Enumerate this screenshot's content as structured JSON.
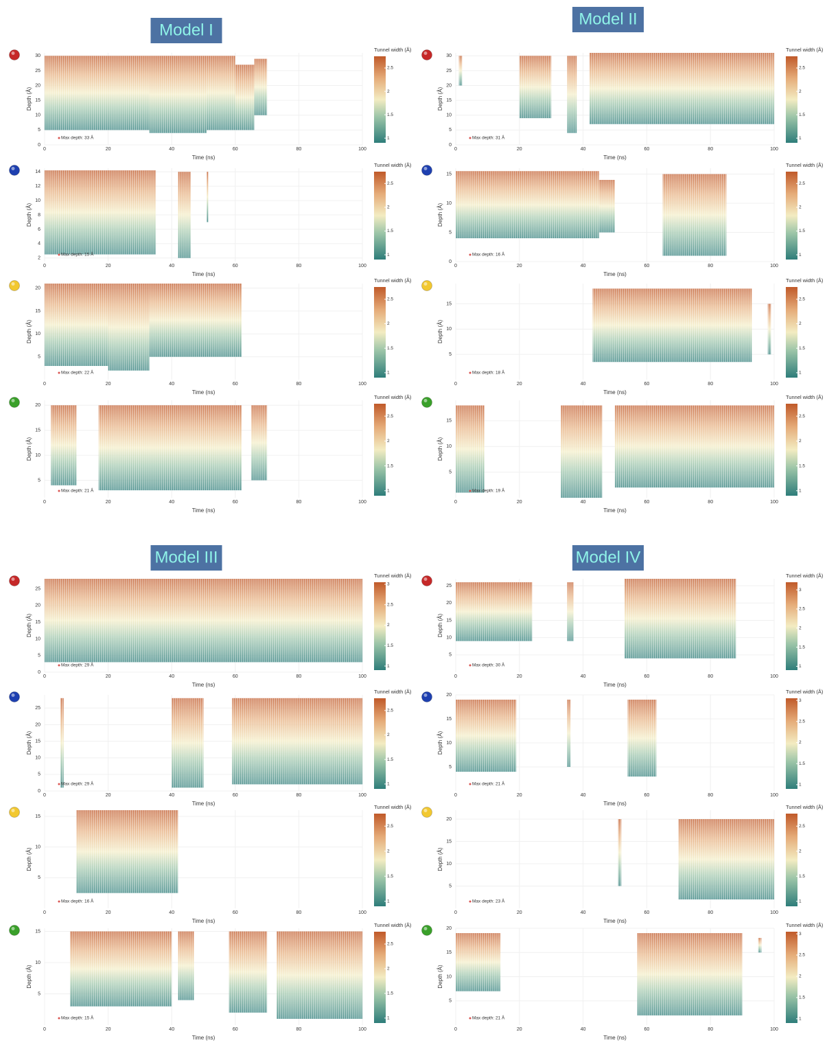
{
  "chart_data": [
    {
      "type": "heatmap",
      "title": "Model I",
      "marker_color": "#c62828",
      "xlabel": "Time (ns)",
      "ylabel": "Depth (Å)",
      "colorbar_label": "Tunnel width (Å)",
      "annotation": "Max depth: 33 Å",
      "xlim": [
        0,
        100
      ],
      "xticks": [
        0,
        20,
        40,
        60,
        80,
        100
      ],
      "ylim": [
        0,
        31
      ],
      "yticks": [
        0,
        5,
        10,
        15,
        20,
        25,
        30
      ],
      "clim": [
        0.9,
        2.75
      ],
      "cticks": [
        1,
        1.5,
        2,
        2.5
      ],
      "segments": [
        [
          0,
          33,
          5,
          30
        ],
        [
          33,
          45,
          4,
          30
        ],
        [
          45,
          51,
          4,
          30
        ],
        [
          51,
          60,
          5,
          30
        ],
        [
          60,
          66,
          5,
          27
        ],
        [
          66,
          70,
          10,
          29
        ]
      ]
    },
    {
      "type": "heatmap",
      "marker_color": "#1e40b0",
      "xlabel": "Time (ns)",
      "ylabel": "Depth (Å)",
      "colorbar_label": "Tunnel width (Å)",
      "annotation": "Max depth: 15 Å",
      "xlim": [
        0,
        100
      ],
      "xticks": [
        0,
        20,
        40,
        60,
        80,
        100
      ],
      "ylim": [
        1.5,
        14.5
      ],
      "yticks": [
        2,
        4,
        6,
        8,
        10,
        12,
        14
      ],
      "clim": [
        0.9,
        2.75
      ],
      "cticks": [
        1,
        1.5,
        2,
        2.5
      ],
      "segments": [
        [
          0,
          35,
          2.5,
          14.2
        ],
        [
          42,
          46,
          2,
          14
        ],
        [
          51,
          51.5,
          7,
          14
        ]
      ]
    },
    {
      "type": "heatmap",
      "marker_color": "#f2c830",
      "xlabel": "Time (ns)",
      "ylabel": "Depth (Å)",
      "colorbar_label": "Tunnel width (Å)",
      "annotation": "Max depth: 22 Å",
      "xlim": [
        0,
        100
      ],
      "xticks": [
        0,
        20,
        40,
        60,
        80,
        100
      ],
      "ylim": [
        0,
        21
      ],
      "yticks": [
        5,
        10,
        15,
        20
      ],
      "clim": [
        0.9,
        2.75
      ],
      "cticks": [
        1,
        1.5,
        2,
        2.5
      ],
      "segments": [
        [
          0,
          10,
          3,
          21
        ],
        [
          10,
          20,
          3,
          21
        ],
        [
          20,
          33,
          2,
          21
        ],
        [
          33,
          62,
          5,
          21
        ]
      ]
    },
    {
      "type": "heatmap",
      "marker_color": "#3aa02a",
      "xlabel": "Time (ns)",
      "ylabel": "Depth (Å)",
      "colorbar_label": "Tunnel width (Å)",
      "annotation": "Max depth: 21 Å",
      "xlim": [
        0,
        100
      ],
      "xticks": [
        0,
        20,
        40,
        60,
        80,
        100
      ],
      "ylim": [
        1.5,
        21
      ],
      "yticks": [
        5,
        10,
        15,
        20
      ],
      "clim": [
        0.9,
        2.75
      ],
      "cticks": [
        1,
        1.5,
        2,
        2.5
      ],
      "segments": [
        [
          2,
          10,
          4,
          20
        ],
        [
          17,
          62,
          3,
          20
        ],
        [
          65,
          70,
          5,
          20
        ]
      ]
    },
    {
      "type": "heatmap",
      "title": "Model II",
      "marker_color": "#c62828",
      "xlabel": "Time (ns)",
      "ylabel": "Depth (Å)",
      "colorbar_label": "Tunnel width (Å)",
      "annotation": "Max depth: 31 Å",
      "xlim": [
        0,
        100
      ],
      "xticks": [
        0,
        20,
        40,
        60,
        80,
        100
      ],
      "ylim": [
        0,
        31
      ],
      "yticks": [
        0,
        5,
        10,
        15,
        20,
        25,
        30
      ],
      "clim": [
        0.9,
        2.75
      ],
      "cticks": [
        1,
        1.5,
        2,
        2.5
      ],
      "segments": [
        [
          1,
          2,
          20,
          30
        ],
        [
          20,
          30,
          9,
          30
        ],
        [
          35,
          38,
          4,
          30
        ],
        [
          42,
          100,
          7,
          31
        ]
      ]
    },
    {
      "type": "heatmap",
      "marker_color": "#1e40b0",
      "xlabel": "Time (ns)",
      "ylabel": "Depth (Å)",
      "colorbar_label": "Tunnel width (Å)",
      "annotation": "Max depth: 16 Å",
      "xlim": [
        0,
        100
      ],
      "xticks": [
        0,
        20,
        40,
        60,
        80,
        100
      ],
      "ylim": [
        0,
        16
      ],
      "yticks": [
        0,
        5,
        10,
        15
      ],
      "clim": [
        0.9,
        2.75
      ],
      "cticks": [
        1,
        1.5,
        2,
        2.5
      ],
      "segments": [
        [
          0,
          45,
          4,
          15.5
        ],
        [
          45,
          50,
          5,
          14
        ],
        [
          65,
          85,
          1,
          15
        ]
      ]
    },
    {
      "type": "heatmap",
      "marker_color": "#f2c830",
      "xlabel": "Time (ns)",
      "ylabel": "Depth (Å)",
      "colorbar_label": "Tunnel width (Å)",
      "annotation": "Max depth: 18 Å",
      "xlim": [
        0,
        100
      ],
      "xticks": [
        0,
        20,
        40,
        60,
        80,
        100
      ],
      "ylim": [
        0,
        19
      ],
      "yticks": [
        5,
        10,
        15
      ],
      "clim": [
        0.9,
        2.75
      ],
      "cticks": [
        1,
        1.5,
        2,
        2.5
      ],
      "segments": [
        [
          43,
          93,
          3.5,
          18
        ],
        [
          98,
          99,
          5,
          15
        ]
      ]
    },
    {
      "type": "heatmap",
      "marker_color": "#3aa02a",
      "xlabel": "Time (ns)",
      "ylabel": "Depth (Å)",
      "colorbar_label": "Tunnel width (Å)",
      "annotation": "Max depth: 19 Å",
      "xlim": [
        0,
        100
      ],
      "xticks": [
        0,
        20,
        40,
        60,
        80,
        100
      ],
      "ylim": [
        0,
        19
      ],
      "yticks": [
        5,
        10,
        15
      ],
      "clim": [
        0.9,
        2.75
      ],
      "cticks": [
        1,
        1.5,
        2,
        2.5
      ],
      "segments": [
        [
          0,
          9,
          1,
          18
        ],
        [
          33,
          46,
          0,
          18
        ],
        [
          50,
          100,
          2,
          18
        ]
      ]
    },
    {
      "type": "heatmap",
      "title": "Model III",
      "marker_color": "#c62828",
      "xlabel": "Time (ns)",
      "ylabel": "Depth (Å)",
      "colorbar_label": "Tunnel width (Å)",
      "annotation": "Max depth: 29 Å",
      "xlim": [
        0,
        100
      ],
      "xticks": [
        0,
        20,
        40,
        60,
        80,
        100
      ],
      "ylim": [
        0,
        28
      ],
      "yticks": [
        0,
        5,
        10,
        15,
        20,
        25
      ],
      "clim": [
        0.9,
        3.05
      ],
      "cticks": [
        1,
        1.5,
        2,
        2.5,
        3
      ],
      "segments": [
        [
          0,
          100,
          3,
          28
        ]
      ]
    },
    {
      "type": "heatmap",
      "marker_color": "#1e40b0",
      "xlabel": "Time (ns)",
      "ylabel": "Depth (Å)",
      "colorbar_label": "Tunnel width (Å)",
      "annotation": "Max depth: 29 Å",
      "xlim": [
        0,
        100
      ],
      "xticks": [
        0,
        20,
        40,
        60,
        80,
        100
      ],
      "ylim": [
        0,
        29
      ],
      "yticks": [
        0,
        5,
        10,
        15,
        20,
        25
      ],
      "clim": [
        0.9,
        2.75
      ],
      "cticks": [
        1,
        1.5,
        2,
        2.5
      ],
      "segments": [
        [
          5,
          6,
          1,
          28
        ],
        [
          40,
          50,
          1,
          28
        ],
        [
          59,
          100,
          2,
          28
        ]
      ]
    },
    {
      "type": "heatmap",
      "marker_color": "#f2c830",
      "xlabel": "Time (ns)",
      "ylabel": "Depth (Å)",
      "colorbar_label": "Tunnel width (Å)",
      "annotation": "Max depth: 16 Å",
      "xlim": [
        0,
        100
      ],
      "xticks": [
        0,
        20,
        40,
        60,
        80,
        100
      ],
      "ylim": [
        0,
        16
      ],
      "yticks": [
        5,
        10,
        15
      ],
      "clim": [
        0.9,
        2.75
      ],
      "cticks": [
        1,
        1.5,
        2,
        2.5
      ],
      "segments": [
        [
          10,
          42,
          2.5,
          16
        ]
      ]
    },
    {
      "type": "heatmap",
      "marker_color": "#3aa02a",
      "xlabel": "Time (ns)",
      "ylabel": "Depth (Å)",
      "colorbar_label": "Tunnel width (Å)",
      "annotation": "Max depth: 15 Å",
      "xlim": [
        0,
        100
      ],
      "xticks": [
        0,
        20,
        40,
        60,
        80,
        100
      ],
      "ylim": [
        0,
        15.5
      ],
      "yticks": [
        5,
        10,
        15
      ],
      "clim": [
        0.9,
        2.75
      ],
      "cticks": [
        1,
        1.5,
        2,
        2.5
      ],
      "segments": [
        [
          8,
          40,
          3,
          15
        ],
        [
          42,
          47,
          4,
          15
        ],
        [
          58,
          70,
          2,
          15
        ],
        [
          73,
          100,
          1,
          15
        ]
      ]
    },
    {
      "type": "heatmap",
      "title": "Model IV",
      "marker_color": "#c62828",
      "xlabel": "Time (ns)",
      "ylabel": "Depth (Å)",
      "colorbar_label": "Tunnel width (Å)",
      "annotation": "Max depth: 30 Å",
      "xlim": [
        0,
        100
      ],
      "xticks": [
        0,
        20,
        40,
        60,
        80,
        100
      ],
      "ylim": [
        0,
        27
      ],
      "yticks": [
        5,
        10,
        15,
        20,
        25
      ],
      "clim": [
        0.9,
        3.2
      ],
      "cticks": [
        1,
        1.5,
        2,
        2.5,
        3
      ],
      "segments": [
        [
          0,
          24,
          9,
          26
        ],
        [
          35,
          37,
          9,
          26
        ],
        [
          53,
          88,
          4,
          27
        ]
      ]
    },
    {
      "type": "heatmap",
      "marker_color": "#1e40b0",
      "xlabel": "Time (ns)",
      "ylabel": "Depth (Å)",
      "colorbar_label": "Tunnel width (Å)",
      "annotation": "Max depth: 21 Å",
      "xlim": [
        0,
        100
      ],
      "xticks": [
        0,
        20,
        40,
        60,
        80,
        100
      ],
      "ylim": [
        0,
        20
      ],
      "yticks": [
        5,
        10,
        15,
        20
      ],
      "clim": [
        0.9,
        3.05
      ],
      "cticks": [
        1,
        1.5,
        2,
        2.5,
        3
      ],
      "segments": [
        [
          0,
          19,
          4,
          19
        ],
        [
          35,
          36,
          5,
          19
        ],
        [
          54,
          63,
          3,
          19
        ]
      ]
    },
    {
      "type": "heatmap",
      "marker_color": "#f2c830",
      "xlabel": "Time (ns)",
      "ylabel": "Depth (Å)",
      "colorbar_label": "Tunnel width (Å)",
      "annotation": "Max depth: 23 Å",
      "xlim": [
        0,
        100
      ],
      "xticks": [
        0,
        20,
        40,
        60,
        80,
        100
      ],
      "ylim": [
        0,
        22
      ],
      "yticks": [
        5,
        10,
        15,
        20
      ],
      "clim": [
        0.9,
        2.75
      ],
      "cticks": [
        1,
        1.5,
        2,
        2.5
      ],
      "segments": [
        [
          51,
          52,
          5,
          20
        ],
        [
          70,
          100,
          2,
          20
        ]
      ]
    },
    {
      "type": "heatmap",
      "marker_color": "#3aa02a",
      "xlabel": "Time (ns)",
      "ylabel": "Depth (Å)",
      "colorbar_label": "Tunnel width (Å)",
      "annotation": "Max depth: 21 Å",
      "xlim": [
        0,
        100
      ],
      "xticks": [
        0,
        20,
        40,
        60,
        80,
        100
      ],
      "ylim": [
        0,
        20
      ],
      "yticks": [
        5,
        10,
        15,
        20
      ],
      "clim": [
        0.9,
        3.05
      ],
      "cticks": [
        1,
        1.5,
        2,
        2.5,
        3
      ],
      "segments": [
        [
          0,
          14,
          7,
          19
        ],
        [
          57,
          90,
          2,
          19
        ],
        [
          95,
          96,
          15,
          18
        ]
      ]
    }
  ]
}
